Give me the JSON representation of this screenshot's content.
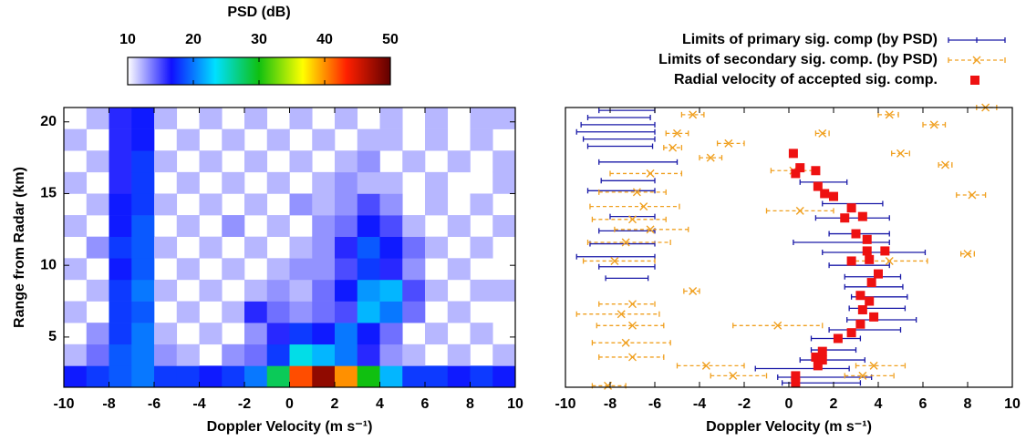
{
  "chart_data": [
    {
      "type": "heatmap",
      "xlabel": "Doppler Velocity (m s⁻¹)",
      "ylabel": "Range from Radar (km)",
      "xlim": [
        -10,
        10
      ],
      "xticks": [
        -10,
        -8,
        -6,
        -4,
        -2,
        0,
        2,
        4,
        6,
        8,
        10
      ],
      "ylim": [
        1.5,
        21
      ],
      "yticks": [
        5,
        10,
        15,
        20
      ],
      "xbins": [
        -10,
        -9,
        -8,
        -7,
        -6,
        -5,
        -4,
        -3,
        -2,
        -1,
        0,
        1,
        2,
        3,
        4,
        5,
        6,
        7,
        8,
        9,
        10
      ],
      "ybins": [
        1.5,
        3,
        4.5,
        6,
        7.5,
        9,
        10.5,
        12,
        13.5,
        15,
        16.5,
        18,
        19.5,
        21
      ],
      "z": [
        [
          17,
          18,
          19,
          20,
          18,
          18,
          17,
          18,
          20,
          28,
          42,
          48,
          40,
          30,
          22,
          18,
          18,
          17,
          18,
          17
        ],
        [
          12,
          14,
          19,
          20,
          13,
          12,
          null,
          13,
          14,
          18,
          24,
          22,
          20,
          16,
          13,
          12,
          null,
          12,
          null,
          12
        ],
        [
          null,
          13,
          18,
          20,
          12,
          null,
          12,
          null,
          13,
          16,
          18,
          17,
          20,
          17,
          14,
          null,
          12,
          null,
          12,
          null
        ],
        [
          12,
          null,
          18,
          19,
          null,
          12,
          null,
          12,
          16,
          14,
          13,
          14,
          15,
          22,
          20,
          14,
          null,
          12,
          null,
          null
        ],
        [
          null,
          12,
          18,
          20,
          12,
          null,
          12,
          null,
          12,
          13,
          12,
          14,
          17,
          21,
          22,
          15,
          12,
          null,
          12,
          12
        ],
        [
          12,
          null,
          17,
          19,
          null,
          12,
          null,
          12,
          null,
          12,
          13,
          13,
          15,
          18,
          16,
          13,
          null,
          12,
          null,
          null
        ],
        [
          null,
          13,
          18,
          19,
          12,
          null,
          12,
          null,
          12,
          null,
          12,
          13,
          16,
          19,
          17,
          14,
          12,
          null,
          12,
          null
        ],
        [
          12,
          null,
          17,
          19,
          null,
          12,
          null,
          13,
          null,
          12,
          null,
          13,
          14,
          17,
          15,
          12,
          null,
          12,
          null,
          12
        ],
        [
          null,
          12,
          17,
          18,
          12,
          null,
          12,
          null,
          12,
          null,
          13,
          12,
          13,
          15,
          13,
          null,
          12,
          null,
          12,
          null
        ],
        [
          12,
          null,
          16,
          18,
          null,
          12,
          null,
          12,
          null,
          12,
          null,
          12,
          13,
          12,
          12,
          null,
          12,
          null,
          null,
          12
        ],
        [
          null,
          12,
          16,
          18,
          12,
          null,
          12,
          null,
          12,
          null,
          12,
          null,
          12,
          13,
          null,
          12,
          null,
          12,
          null,
          12
        ],
        [
          12,
          null,
          16,
          17,
          null,
          12,
          null,
          12,
          null,
          12,
          null,
          12,
          null,
          12,
          12,
          null,
          12,
          null,
          12,
          null
        ],
        [
          null,
          12,
          16,
          17,
          12,
          null,
          12,
          null,
          12,
          null,
          12,
          null,
          12,
          null,
          12,
          null,
          12,
          null,
          12,
          12
        ]
      ],
      "zlabel": "PSD (dB)",
      "zlim": [
        10,
        50
      ],
      "zticks": [
        10,
        20,
        30,
        40,
        50
      ],
      "colormap": [
        "#ffffff",
        "#1010ff",
        "#00e0ff",
        "#10c010",
        "#ffff00",
        "#ff2000",
        "#600000"
      ]
    },
    {
      "type": "scatter",
      "xlabel": "Doppler Velocity (m s⁻¹)",
      "xlim": [
        -10,
        10
      ],
      "xticks": [
        -10,
        -8,
        -6,
        -4,
        -2,
        0,
        2,
        4,
        6,
        8,
        10
      ],
      "ylim": [
        1.5,
        21
      ],
      "series": [
        {
          "name": "Limits of primary sig. comp (by PSD)",
          "color": "#1a1aa8",
          "marker": "bar",
          "y": [
            20.8,
            20.3,
            19.8,
            19.3,
            18.8,
            18.3,
            17.2,
            15.9,
            15.2,
            13.4,
            12.4,
            11.5,
            10.6,
            9.9,
            9.1,
            15.8,
            14.3,
            13.3,
            12.2,
            11.6,
            10.9,
            10.0,
            9.2,
            8.5,
            7.8,
            7.0,
            6.2,
            5.5,
            4.9,
            4.1,
            3.4,
            2.8,
            2.2,
            1.8
          ],
          "xlow": [
            -8.5,
            -9,
            -9.3,
            -9.5,
            -9.2,
            -9,
            -8.5,
            -8.4,
            -9,
            -8,
            -8.5,
            -8.9,
            -9.5,
            -8.5,
            -8.2,
            0.5,
            1.5,
            1.2,
            1.8,
            0.2,
            1.5,
            1.8,
            2.5,
            2.5,
            2.8,
            2.7,
            2.6,
            1.8,
            1.0,
            1.0,
            0.5,
            -1.5,
            -0.5,
            -0.3
          ],
          "xhigh": [
            -6,
            -6.2,
            -6,
            -6,
            -6,
            -6.1,
            -5,
            -6,
            -6,
            -6,
            -6,
            -6,
            -6,
            -6,
            -6.3,
            2.6,
            4.2,
            4.5,
            4.5,
            4.5,
            6.1,
            4.5,
            5.0,
            5.1,
            5.3,
            5.2,
            5.7,
            5.0,
            3.2,
            3.0,
            3.4,
            2.7,
            3.7,
            3.2
          ]
        },
        {
          "name": "Limits of secondary sig. comp. (by PSD)",
          "color": "#f0a020",
          "marker": "x",
          "dashed": true,
          "x": [
            -4.3,
            -5.0,
            -5.2,
            -2.7,
            -3.5,
            -6.2,
            -6.8,
            -6.5,
            -7.0,
            -6.2,
            -7.3,
            -7.8,
            -4.3,
            -7.0,
            -7.5,
            -7.0,
            -7.3,
            -7.0,
            -3.7,
            -2.5,
            -8.1,
            -0.5,
            3.8,
            3.3,
            4.5,
            6.5,
            8.8,
            1.5,
            5.0,
            7.0,
            8.2,
            8.0,
            4.5,
            0.2,
            0.5
          ],
          "xlow": [
            -4.8,
            -5.5,
            -5.6,
            -3.2,
            -4.0,
            -8.0,
            -8.5,
            -8.9,
            -8.8,
            -7.8,
            -9.0,
            -9.2,
            -4.7,
            -8.5,
            -9.5,
            -8.6,
            -8.8,
            -8.5,
            -5.0,
            -3.5,
            -8.8,
            -2.5,
            3.0,
            2.5,
            4.0,
            6.0,
            8.4,
            1.2,
            4.6,
            6.7,
            7.5,
            7.7,
            2.7,
            -0.8,
            -1.0
          ],
          "xhigh": [
            -3.8,
            -4.5,
            -4.8,
            -2.0,
            -3.0,
            -4.8,
            -5.5,
            -4.9,
            -5.5,
            -4.5,
            -5.3,
            -6.0,
            -4.0,
            -6.0,
            -5.8,
            -5.6,
            -5.3,
            -5.6,
            -2.0,
            -1.0,
            -7.3,
            1.5,
            5.2,
            4.7,
            4.9,
            7.0,
            9.3,
            1.8,
            5.4,
            7.3,
            8.8,
            8.3,
            6.2,
            1.3,
            2.0
          ],
          "y": [
            20.5,
            19.2,
            18.2,
            18.5,
            17.5,
            16.4,
            15.1,
            14.1,
            13.2,
            12.5,
            11.6,
            10.3,
            8.2,
            7.3,
            6.6,
            5.8,
            4.6,
            3.6,
            3.0,
            2.3,
            1.6,
            5.8,
            3.0,
            2.3,
            20.5,
            19.8,
            21,
            19.2,
            17.8,
            17.0,
            14.9,
            10.8,
            10.3,
            16.6,
            13.8
          ]
        },
        {
          "name": "Radial velocity of accepted sig. comp.",
          "color": "#ee1111",
          "marker": "square",
          "x": [
            0.2,
            0.5,
            0.3,
            1.2,
            1.3,
            1.6,
            2.0,
            2.8,
            2.5,
            3.3,
            3.0,
            3.5,
            3.5,
            4.3,
            2.8,
            3.6,
            4.0,
            3.7,
            3.2,
            3.6,
            3.3,
            3.8,
            3.2,
            2.8,
            2.2,
            1.5,
            1.2,
            1.5,
            1.3,
            0.3,
            0.3
          ],
          "y": [
            17.8,
            16.8,
            16.4,
            16.6,
            15.5,
            15.0,
            14.8,
            14.0,
            13.3,
            13.4,
            12.2,
            11.8,
            11.0,
            11.0,
            10.3,
            10.4,
            9.4,
            8.8,
            7.9,
            7.5,
            6.9,
            6.4,
            5.9,
            5.3,
            4.9,
            4.0,
            3.6,
            3.4,
            3.0,
            2.3,
            1.8
          ]
        }
      ]
    }
  ]
}
